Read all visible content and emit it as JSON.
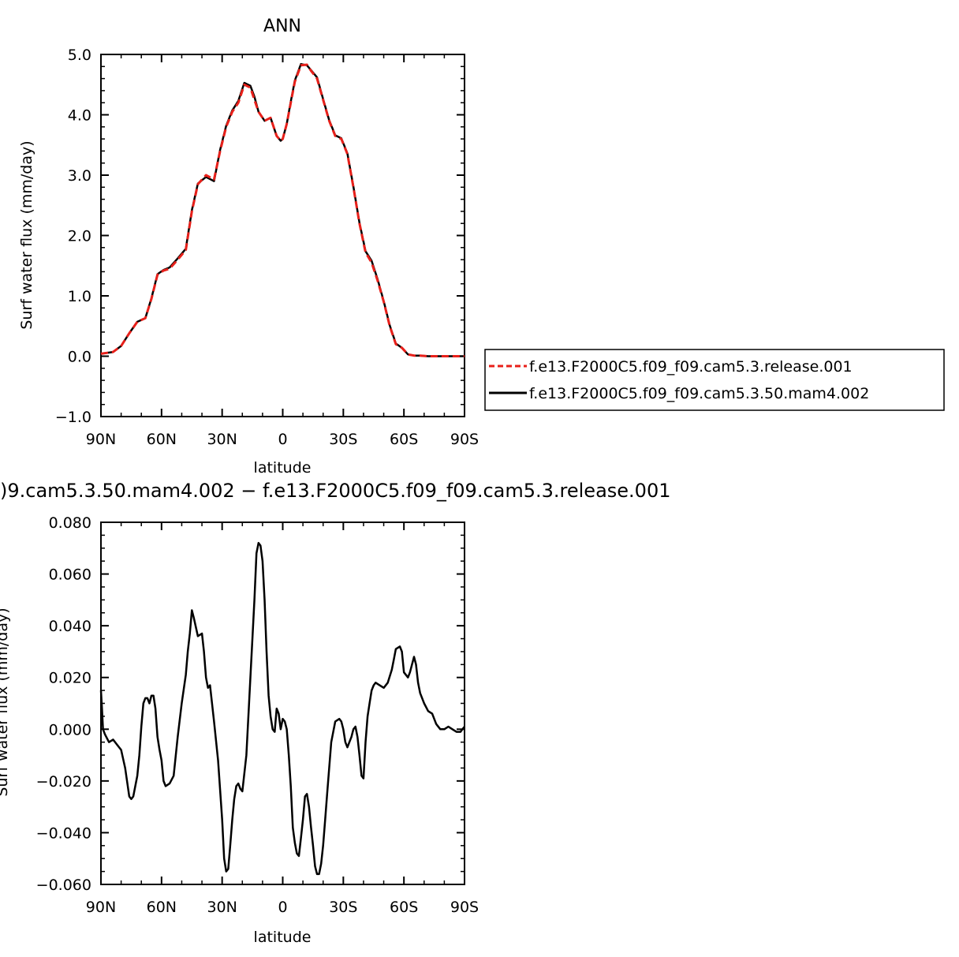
{
  "chart_data": [
    {
      "type": "line",
      "title": "ANN",
      "xlabel": "latitude",
      "ylabel": "Surf water flux (mm/day)",
      "xlim": [
        90,
        -90
      ],
      "ylim": [
        -1.0,
        5.0
      ],
      "x_ticks": [
        {
          "v": 90,
          "label": "90N"
        },
        {
          "v": 60,
          "label": "60N"
        },
        {
          "v": 30,
          "label": "30N"
        },
        {
          "v": 0,
          "label": "0"
        },
        {
          "v": -30,
          "label": "30S"
        },
        {
          "v": -60,
          "label": "60S"
        },
        {
          "v": -90,
          "label": "90S"
        }
      ],
      "y_ticks": [
        {
          "v": 5.0,
          "label": "5.0"
        },
        {
          "v": 4.0,
          "label": "4.0"
        },
        {
          "v": 3.0,
          "label": "3.0"
        },
        {
          "v": 2.0,
          "label": "2.0"
        },
        {
          "v": 1.0,
          "label": "1.0"
        },
        {
          "v": 0.0,
          "label": "0.0"
        },
        {
          "v": -1.0,
          "label": "−1.0"
        }
      ],
      "legend": "right-outside",
      "series": [
        {
          "name": "f.e13.F2000C5.f09_f09.cam5.3.release.001",
          "color": "#e8201a",
          "dash": "dashed",
          "x": [
            90,
            84,
            80,
            76,
            72,
            68,
            65,
            62,
            59,
            56,
            52,
            48,
            45,
            42,
            38,
            34,
            31,
            28,
            25,
            22,
            19,
            16,
            14,
            12,
            9,
            6,
            3,
            1,
            0,
            -2,
            -4,
            -6,
            -9,
            -12,
            -14,
            -17,
            -20,
            -23,
            -26,
            -29,
            -32,
            -35,
            -38,
            -41,
            -44,
            -47,
            -50,
            -53,
            -56,
            -59,
            -62,
            -65,
            -68,
            -72,
            -76,
            -80,
            -84,
            -87,
            -90
          ],
          "y": [
            0.04,
            0.07,
            0.17,
            0.38,
            0.57,
            0.63,
            0.95,
            1.35,
            1.42,
            1.45,
            1.6,
            1.76,
            2.4,
            2.85,
            3.0,
            2.93,
            3.4,
            3.8,
            4.05,
            4.2,
            4.5,
            4.45,
            4.25,
            4.05,
            3.9,
            3.95,
            3.65,
            3.57,
            3.6,
            3.85,
            4.2,
            4.55,
            4.82,
            4.83,
            4.73,
            4.6,
            4.25,
            3.9,
            3.65,
            3.6,
            3.35,
            2.8,
            2.2,
            1.72,
            1.55,
            1.25,
            0.9,
            0.5,
            0.2,
            0.14,
            0.03,
            0.01,
            0.01,
            0.0,
            0.0,
            0.0,
            0.0,
            0.0,
            0.0
          ]
        },
        {
          "name": "f.e13.F2000C5.f09_f09.cam5.3.50.mam4.002",
          "color": "#000000",
          "dash": "solid",
          "x": [
            90,
            84,
            80,
            76,
            72,
            68,
            65,
            62,
            59,
            56,
            52,
            48,
            45,
            42,
            38,
            34,
            31,
            28,
            25,
            22,
            19,
            16,
            14,
            12,
            9,
            6,
            3,
            1,
            0,
            -2,
            -4,
            -6,
            -9,
            -12,
            -14,
            -17,
            -20,
            -23,
            -26,
            -29,
            -32,
            -35,
            -38,
            -41,
            -44,
            -47,
            -50,
            -53,
            -56,
            -59,
            -62,
            -65,
            -68,
            -72,
            -76,
            -80,
            -84,
            -87,
            -90
          ],
          "y": [
            0.04,
            0.07,
            0.17,
            0.38,
            0.57,
            0.63,
            0.96,
            1.36,
            1.43,
            1.47,
            1.62,
            1.78,
            2.42,
            2.86,
            2.97,
            2.9,
            3.42,
            3.82,
            4.07,
            4.23,
            4.53,
            4.48,
            4.3,
            4.05,
            3.9,
            3.95,
            3.65,
            3.57,
            3.6,
            3.85,
            4.22,
            4.57,
            4.84,
            4.82,
            4.74,
            4.62,
            4.26,
            3.91,
            3.66,
            3.61,
            3.36,
            2.81,
            2.21,
            1.74,
            1.58,
            1.27,
            0.91,
            0.51,
            0.21,
            0.14,
            0.03,
            0.01,
            0.01,
            0.0,
            0.0,
            0.0,
            0.0,
            0.0,
            0.0
          ]
        }
      ]
    },
    {
      "type": "line",
      "title": ")9.cam5.3.50.mam4.002 − f.e13.F2000C5.f09_f09.cam5.3.release.001",
      "xlabel": "latitude",
      "ylabel": "Surf water flux (mm/day)",
      "xlim": [
        90,
        -90
      ],
      "ylim": [
        -0.06,
        0.08
      ],
      "x_ticks": [
        {
          "v": 90,
          "label": "90N"
        },
        {
          "v": 60,
          "label": "60N"
        },
        {
          "v": 30,
          "label": "30N"
        },
        {
          "v": 0,
          "label": "0"
        },
        {
          "v": -30,
          "label": "30S"
        },
        {
          "v": -60,
          "label": "60S"
        },
        {
          "v": -90,
          "label": "90S"
        }
      ],
      "y_ticks": [
        {
          "v": 0.08,
          "label": "0.080"
        },
        {
          "v": 0.06,
          "label": "0.060"
        },
        {
          "v": 0.04,
          "label": "0.040"
        },
        {
          "v": 0.02,
          "label": "0.020"
        },
        {
          "v": 0.0,
          "label": "0.000"
        },
        {
          "v": -0.02,
          "label": "−0.020"
        },
        {
          "v": -0.04,
          "label": "−0.040"
        },
        {
          "v": -0.06,
          "label": "−0.060"
        }
      ],
      "series": [
        {
          "color": "#000000",
          "dash": "solid",
          "x": [
            90,
            89.5,
            89,
            88,
            86,
            84,
            82,
            80,
            78,
            76,
            75,
            74,
            72,
            71,
            70,
            69,
            68,
            67,
            66,
            65,
            64,
            63,
            62,
            61,
            60,
            59,
            58,
            56,
            54,
            52,
            50,
            48,
            47,
            46,
            45,
            44,
            42,
            40,
            39,
            38,
            37,
            36,
            34,
            32,
            30,
            29,
            28,
            27,
            26,
            25,
            24,
            23,
            22,
            21,
            20,
            18,
            16,
            14,
            13,
            12,
            11,
            10,
            9,
            8,
            7,
            6,
            5,
            4,
            3,
            2,
            1,
            0,
            -1,
            -2,
            -3,
            -4,
            -5,
            -6,
            -7,
            -8,
            -9,
            -10,
            -11,
            -12,
            -13,
            -14,
            -15,
            -16,
            -17,
            -18,
            -19,
            -20,
            -21,
            -22,
            -24,
            -26,
            -28,
            -29,
            -30,
            -31,
            -32,
            -33,
            -34,
            -35,
            -36,
            -37,
            -38,
            -39,
            -40,
            -41,
            -42,
            -43,
            -44,
            -45,
            -46,
            -48,
            -50,
            -52,
            -54,
            -55,
            -56,
            -58,
            -59,
            -60,
            -62,
            -63,
            -64,
            -65,
            -66,
            -67,
            -68,
            -70,
            -72,
            -74,
            -76,
            -78,
            -80,
            -82,
            -84,
            -86,
            -88,
            -89,
            -90
          ],
          "y": [
            0.015,
            0.008,
            0.0,
            -0.002,
            -0.005,
            -0.004,
            -0.006,
            -0.008,
            -0.015,
            -0.026,
            -0.027,
            -0.026,
            -0.018,
            -0.01,
            0.001,
            0.01,
            0.012,
            0.012,
            0.01,
            0.013,
            0.013,
            0.008,
            -0.003,
            -0.008,
            -0.012,
            -0.02,
            -0.022,
            -0.021,
            -0.018,
            -0.003,
            0.01,
            0.021,
            0.03,
            0.037,
            0.046,
            0.043,
            0.036,
            0.037,
            0.03,
            0.02,
            0.016,
            0.017,
            0.003,
            -0.012,
            -0.035,
            -0.05,
            -0.055,
            -0.054,
            -0.045,
            -0.035,
            -0.027,
            -0.022,
            -0.021,
            -0.023,
            -0.024,
            -0.01,
            0.02,
            0.05,
            0.068,
            0.072,
            0.071,
            0.065,
            0.05,
            0.03,
            0.013,
            0.005,
            0.0,
            -0.001,
            0.008,
            0.006,
            0.0,
            0.004,
            0.003,
            0.0,
            -0.01,
            -0.022,
            -0.038,
            -0.044,
            -0.048,
            -0.049,
            -0.042,
            -0.035,
            -0.026,
            -0.025,
            -0.03,
            -0.038,
            -0.045,
            -0.053,
            -0.056,
            -0.056,
            -0.052,
            -0.045,
            -0.035,
            -0.025,
            -0.005,
            0.003,
            0.004,
            0.003,
            0.0,
            -0.005,
            -0.007,
            -0.005,
            -0.003,
            0.0,
            0.001,
            -0.003,
            -0.01,
            -0.018,
            -0.019,
            -0.005,
            0.005,
            0.01,
            0.015,
            0.017,
            0.018,
            0.017,
            0.016,
            0.018,
            0.023,
            0.027,
            0.031,
            0.032,
            0.03,
            0.022,
            0.02,
            0.022,
            0.025,
            0.028,
            0.025,
            0.018,
            0.014,
            0.01,
            0.007,
            0.006,
            0.002,
            0.0,
            0.0,
            0.001,
            0.0,
            -0.001,
            -0.001,
            0.0,
            0.001
          ]
        }
      ]
    }
  ]
}
